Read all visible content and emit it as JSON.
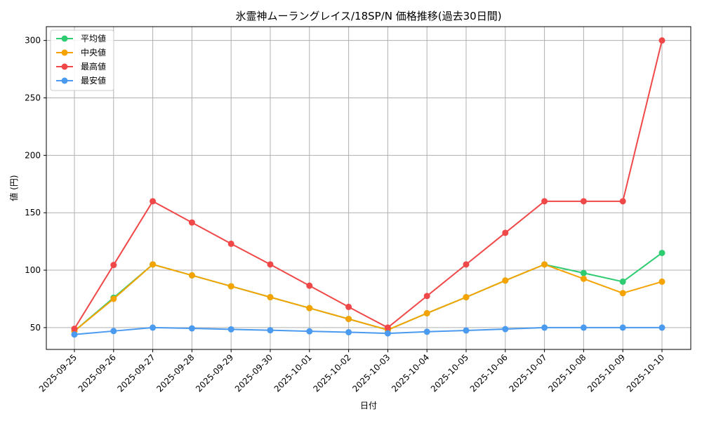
{
  "chart_data": {
    "type": "line",
    "title": "氷霊神ムーラングレイス/18SP/N 価格推移(過去30日間)",
    "xlabel": "日付",
    "ylabel": "値 (円)",
    "ylim": [
      31,
      312
    ],
    "yticks": [
      50,
      100,
      150,
      200,
      250,
      300
    ],
    "grid": true,
    "legend_position": "top-left",
    "categories": [
      "2025-09-25",
      "2025-09-26",
      "2025-09-27",
      "2025-09-28",
      "2025-09-29",
      "2025-09-30",
      "2025-10-01",
      "2025-10-02",
      "2025-10-03",
      "2025-10-04",
      "2025-10-05",
      "2025-10-06",
      "2025-10-07",
      "2025-10-08",
      "2025-10-09",
      "2025-10-10"
    ],
    "series": [
      {
        "name": "平均値",
        "color": "#2ecc71",
        "values": [
          47,
          76,
          105,
          95.5,
          86,
          76.5,
          67,
          57.5,
          48,
          62.5,
          76.5,
          91,
          105,
          97.5,
          90,
          115
        ]
      },
      {
        "name": "中央値",
        "color": "#f5a300",
        "values": [
          47,
          75,
          105,
          95.5,
          86,
          76.5,
          67,
          57.5,
          48,
          62.5,
          76.5,
          91,
          105,
          92.5,
          80,
          90
        ]
      },
      {
        "name": "最高値",
        "color": "#f04848",
        "values": [
          49,
          104.5,
          160,
          141.5,
          123,
          105,
          86.5,
          68,
          50,
          77.5,
          105,
          132.5,
          160,
          160,
          160,
          300
        ]
      },
      {
        "name": "最安値",
        "color": "#4a9af0",
        "values": [
          44,
          47,
          50,
          49.3,
          48.5,
          47.7,
          46.8,
          46,
          45,
          46.4,
          47.5,
          48.7,
          50,
          50,
          50,
          50
        ]
      }
    ]
  }
}
